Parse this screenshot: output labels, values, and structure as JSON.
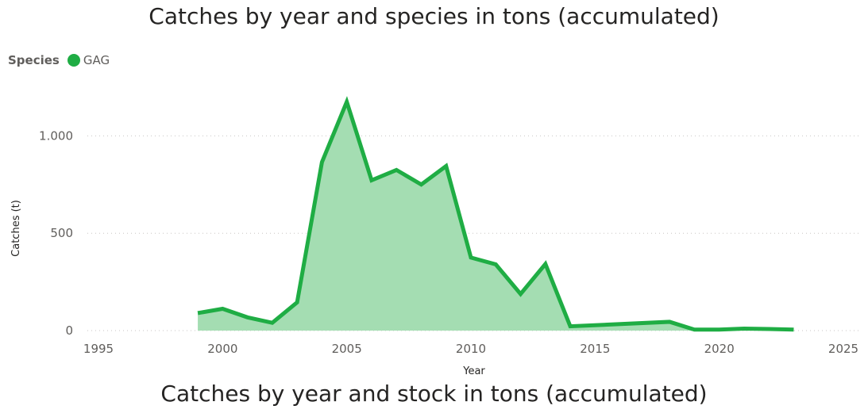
{
  "titles": {
    "chart1": "Catches by year and species in tons (accumulated)",
    "chart2": "Catches by year and stock in tons (accumulated)"
  },
  "legend": {
    "title": "Species",
    "items": [
      {
        "label": "GAG",
        "color": "#1fad44"
      }
    ]
  },
  "chart_data": {
    "type": "area",
    "series": [
      {
        "name": "GAG",
        "color": "#1fad44",
        "fill": "#a4ddb2",
        "x": [
          1999,
          2000,
          2001,
          2002,
          2003,
          2004,
          2005,
          2006,
          2007,
          2008,
          2009,
          2010,
          2011,
          2012,
          2013,
          2014,
          2018,
          2019,
          2020,
          2021,
          2022,
          2023
        ],
        "y": [
          90,
          112,
          68,
          40,
          145,
          865,
          1175,
          772,
          825,
          750,
          845,
          375,
          340,
          188,
          342,
          22,
          45,
          5,
          5,
          10,
          8,
          5
        ]
      }
    ],
    "xlabel": "Year",
    "ylabel": "Catches (t)",
    "xlim": [
      1995,
      2025
    ],
    "ylim": [
      0,
      1250
    ],
    "xticks": [
      1995,
      2000,
      2005,
      2010,
      2015,
      2020,
      2025
    ],
    "yticks": [
      0,
      500,
      1000
    ],
    "ytick_labels": [
      "0",
      "500",
      "1.000"
    ],
    "grid": true,
    "legend_position": "top-left"
  }
}
